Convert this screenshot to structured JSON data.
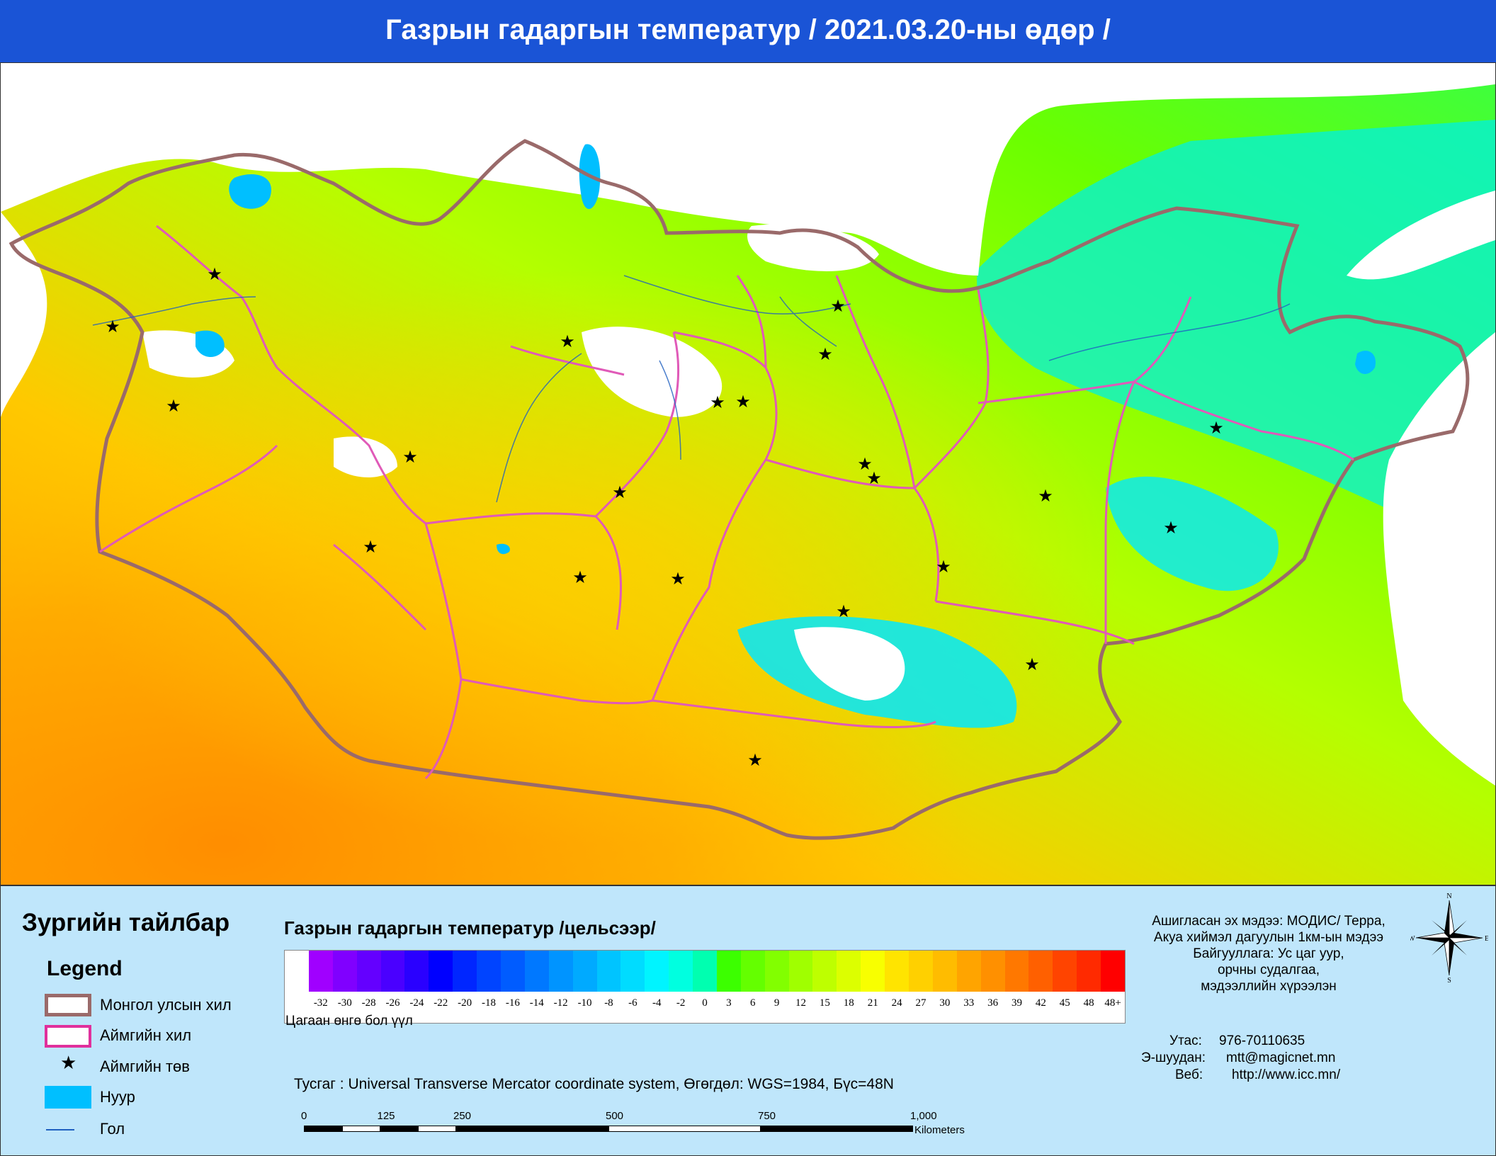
{
  "title": "Газрын гадаргын температур / 2021.03.20-ны өдөр /",
  "legend": {
    "heading": "Зургийн тайлбар",
    "subheading": "Legend",
    "items": [
      {
        "label": "Монгол улсын хил",
        "symbol": "national-border"
      },
      {
        "label": "Аймгийн хил",
        "symbol": "province-border"
      },
      {
        "label": "Аймгийн төв",
        "symbol": "star"
      },
      {
        "label": "Нуур",
        "symbol": "lake"
      },
      {
        "label": "Гол",
        "symbol": "river"
      }
    ]
  },
  "color_scale": {
    "title": "Газрын гадаргын температур /цельсээр/",
    "note": "Цагаан өнгө бол үүл",
    "ticks": [
      "-32",
      "-30",
      "-28",
      "-26",
      "-24",
      "-22",
      "-20",
      "-18",
      "-16",
      "-14",
      "-12",
      "-10",
      "-8",
      "-6",
      "-4",
      "-2",
      "0",
      "3",
      "6",
      "9",
      "12",
      "15",
      "18",
      "21",
      "24",
      "27",
      "30",
      "33",
      "36",
      "39",
      "42",
      "45",
      "48",
      "48+"
    ],
    "colors": [
      "#ffffff",
      "#a000ff",
      "#8000ff",
      "#6400ff",
      "#4a00ff",
      "#2a00ff",
      "#0000ff",
      "#0026ff",
      "#0044ff",
      "#005cff",
      "#0078ff",
      "#0094ff",
      "#00aaff",
      "#00c4ff",
      "#00dcff",
      "#00f4ff",
      "#00ffe0",
      "#00ffb0",
      "#3cff00",
      "#64ff00",
      "#82ff00",
      "#a0ff00",
      "#beff00",
      "#dcff00",
      "#f8ff00",
      "#ffe400",
      "#ffd000",
      "#ffbc00",
      "#ffa400",
      "#ff9000",
      "#ff7800",
      "#ff6000",
      "#ff4400",
      "#ff2a00",
      "#ff0000"
    ]
  },
  "info": {
    "source_lines": [
      "Ашигласан эх мэдээ: МОДИС/ Терра,",
      "Акуа хиймэл дагуулын 1км-ын мэдээ",
      "Байгууллага: Ус цаг уур,",
      "орчны судалгаа,",
      "мэдээллийн хүрээлэн"
    ],
    "phone_label": "Утас:",
    "phone": "976-70110635",
    "email_label": "Э-шуудан:",
    "email": "mtt@magicnet.mn",
    "web_label": "Веб:",
    "web": "http://www.icc.mn/"
  },
  "projection": "Тусгаг : Universal Transverse Mercator coordinate system, Өгөгдөл: WGS=1984, Бүс=48N",
  "scale_bar": {
    "ticks": [
      "0",
      "125",
      "250",
      "500",
      "750",
      "1,000"
    ],
    "unit": "Kilometers"
  },
  "compass": {
    "n": "N",
    "e": "E",
    "s": "S",
    "w": "W"
  },
  "province_centers_count": 21
}
